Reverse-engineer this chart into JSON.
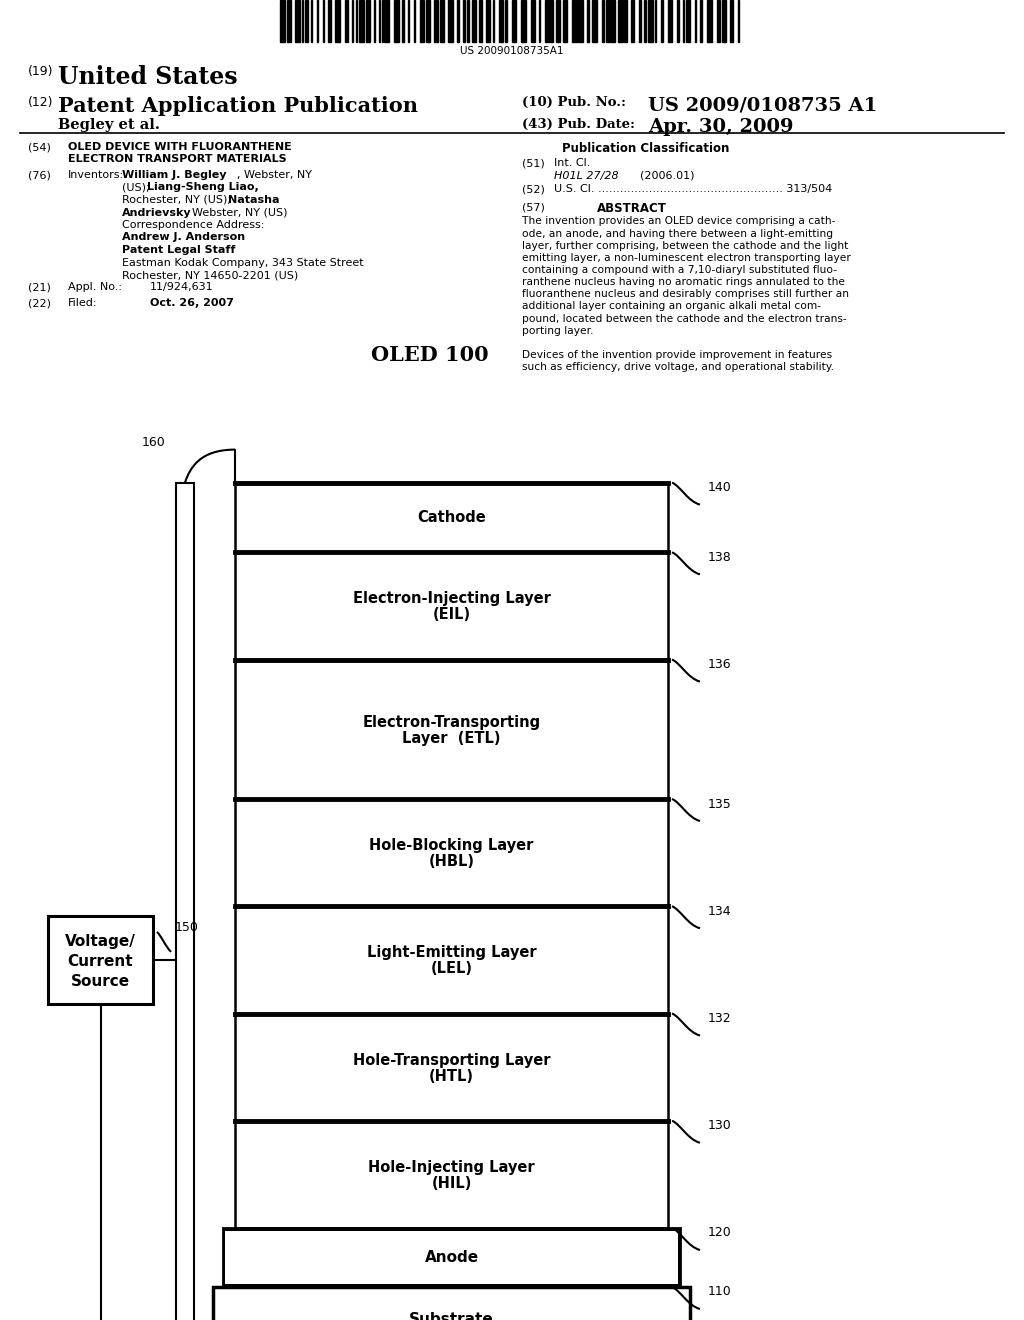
{
  "patent_number": "US 20090108735A1",
  "pub_label": "(19)",
  "country": "United States",
  "app_type_label": "(12)",
  "app_type": "Patent Application Publication",
  "pub_no_label": "(10) Pub. No.:",
  "pub_no": "US 2009/0108735 A1",
  "pub_date_label": "(43) Pub. Date:",
  "pub_date": "Apr. 30, 2009",
  "applicant": "Begley et al.",
  "section54_label": "(54)",
  "section54_title1": "OLED DEVICE WITH FLUORANTHENE",
  "section54_title2": "ELECTRON TRANSPORT MATERIALS",
  "section76_label": "(76)",
  "inventors_label": "Inventors:",
  "corr_address_label": "Correspondence Address:",
  "corr_name": "Andrew J. Anderson",
  "corr_title": "Patent Legal Staff",
  "corr_company": "Eastman Kodak Company, 343 State Street",
  "corr_city": "Rochester, NY 14650-2201 (US)",
  "appl_no_label": "(21)",
  "appl_no_text": "Appl. No.:",
  "appl_no": "11/924,631",
  "filed_label": "(22)",
  "filed_text": "Filed:",
  "filed_date": "Oct. 26, 2007",
  "pub_class_title": "Publication Classification",
  "int_cl_label": "(51)",
  "int_cl_text": "Int. Cl.",
  "int_cl_code": "H01L 27/28",
  "int_cl_date": "(2006.01)",
  "us_cl_label": "(52)",
  "abstract_label": "(57)",
  "abstract_title": "ABSTRACT",
  "diagram_title": "OLED 100",
  "layers": [
    {
      "label": "Hole-Injecting Layer",
      "abbr": "(HIL)",
      "ref": "130",
      "nb": 0.0,
      "nt": 1.0
    },
    {
      "label": "Hole-Transporting Layer",
      "abbr": "(HTL)",
      "ref": "132",
      "nb": 1.0,
      "nt": 2.0
    },
    {
      "label": "Light-Emitting Layer",
      "abbr": "(LEL)",
      "ref": "134",
      "nb": 2.0,
      "nt": 3.0
    },
    {
      "label": "Hole-Blocking Layer",
      "abbr": "(HBL)",
      "ref": "135",
      "nb": 3.0,
      "nt": 4.0
    },
    {
      "label": "Electron-Transporting",
      "abbr": "Layer  (ETL)",
      "ref": "136",
      "nb": 4.0,
      "nt": 5.3
    },
    {
      "label": "Electron-Injecting Layer",
      "abbr": "(EIL)",
      "ref": "138",
      "nb": 5.3,
      "nt": 6.3
    },
    {
      "label": "Cathode",
      "abbr": "",
      "ref": "140",
      "nb": 6.3,
      "nt": 6.95
    }
  ],
  "anode_label": "Anode",
  "anode_ref": "120",
  "substrate_label": "Substrate",
  "substrate_ref": "110",
  "wire_ref_top": "160",
  "wire_ref_bottom": "160",
  "wire_ref_left": "150",
  "voltage_box_lines": [
    "Voltage/",
    "Current",
    "Source"
  ],
  "bg_color": "#ffffff"
}
